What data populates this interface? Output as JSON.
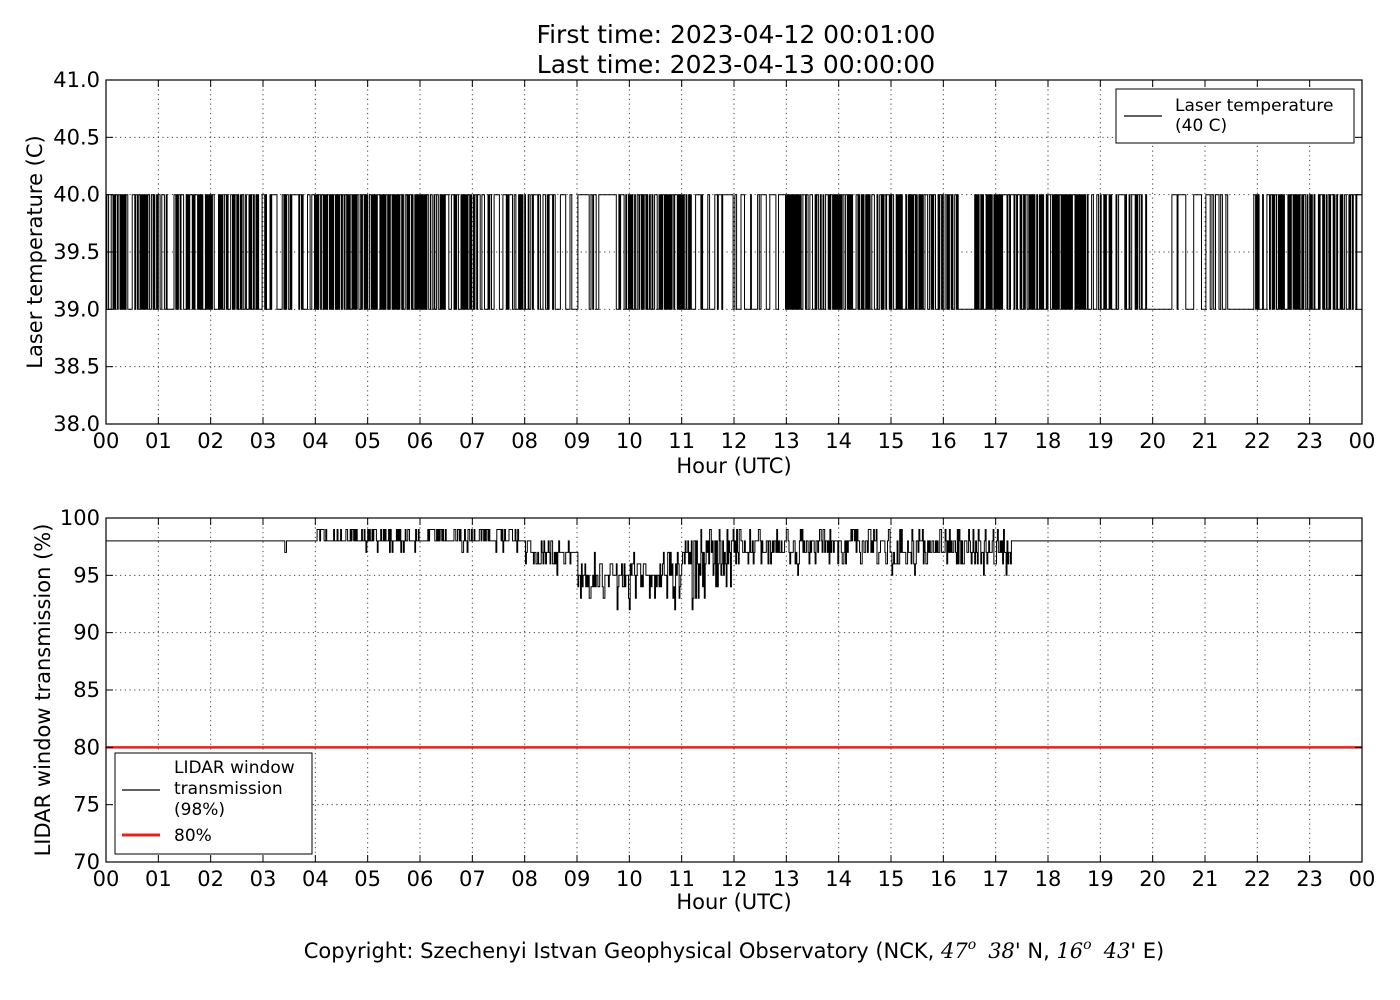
{
  "title_lines": [
    "First time: 2023-04-12 00:01:00",
    "Last time: 2023-04-13 00:00:00"
  ],
  "copyright": {
    "prefix": "Copyright: Szechenyi Istvan Geophysical Observatory (NCK, ",
    "lat_deg": "47",
    "lat_min": "38",
    "lat_suffix": "' N, ",
    "lon_deg": "16",
    "lon_min": "43",
    "lon_suffix": "' E)",
    "deg_symbol": "o"
  },
  "chart_data": [
    {
      "type": "line",
      "xlabel": "Hour (UTC)",
      "ylabel": "Laser temperature (C)",
      "xlim": [
        0,
        24
      ],
      "ylim": [
        38.0,
        41.0
      ],
      "xticks": [
        "00",
        "01",
        "02",
        "03",
        "04",
        "05",
        "06",
        "07",
        "08",
        "09",
        "10",
        "11",
        "12",
        "13",
        "14",
        "15",
        "16",
        "17",
        "18",
        "19",
        "20",
        "21",
        "22",
        "23",
        "00"
      ],
      "yticks": [
        "38.0",
        "38.5",
        "39.0",
        "39.5",
        "40.0",
        "40.5",
        "41.0"
      ],
      "grid": true,
      "legend_position": "top-right",
      "series": [
        {
          "name": "Laser temperature\n(40 C)",
          "color": "#000000",
          "levels": [
            39.0,
            40.0
          ],
          "segments": [
            {
              "start": 0.0,
              "end": 0.3,
              "mode": "toggle",
              "density": 0.55
            },
            {
              "start": 0.3,
              "end": 1.2,
              "mode": "toggle",
              "density": 0.75
            },
            {
              "start": 1.2,
              "end": 1.3,
              "mode": "constant",
              "value": 39.0
            },
            {
              "start": 1.3,
              "end": 3.0,
              "mode": "toggle",
              "density": 0.7
            },
            {
              "start": 3.0,
              "end": 4.0,
              "mode": "toggle",
              "density": 0.35
            },
            {
              "start": 4.0,
              "end": 6.2,
              "mode": "toggle",
              "density": 0.8
            },
            {
              "start": 6.2,
              "end": 7.0,
              "mode": "toggle",
              "density": 0.55
            },
            {
              "start": 7.0,
              "end": 7.9,
              "mode": "toggle",
              "density": 0.4
            },
            {
              "start": 7.9,
              "end": 8.6,
              "mode": "toggle",
              "density": 0.6
            },
            {
              "start": 8.6,
              "end": 9.9,
              "mode": "toggle",
              "density": 0.25
            },
            {
              "start": 9.9,
              "end": 11.2,
              "mode": "toggle",
              "density": 0.8
            },
            {
              "start": 11.2,
              "end": 13.0,
              "mode": "toggle",
              "density": 0.3
            },
            {
              "start": 13.0,
              "end": 16.3,
              "mode": "toggle",
              "density": 0.7
            },
            {
              "start": 16.3,
              "end": 16.6,
              "mode": "constant",
              "value": 39.0
            },
            {
              "start": 16.6,
              "end": 18.8,
              "mode": "toggle",
              "density": 0.75
            },
            {
              "start": 18.8,
              "end": 19.9,
              "mode": "toggle",
              "density": 0.45
            },
            {
              "start": 19.9,
              "end": 20.3,
              "mode": "constant",
              "value": 39.0
            },
            {
              "start": 20.3,
              "end": 21.5,
              "mode": "toggle",
              "density": 0.25
            },
            {
              "start": 21.5,
              "end": 21.9,
              "mode": "constant",
              "value": 39.0
            },
            {
              "start": 21.9,
              "end": 24.0,
              "mode": "toggle",
              "density": 0.65
            }
          ]
        }
      ]
    },
    {
      "type": "line",
      "xlabel": "Hour (UTC)",
      "ylabel": "LIDAR window transmission (%)",
      "xlim": [
        0,
        24
      ],
      "ylim": [
        70,
        100
      ],
      "xticks": [
        "00",
        "01",
        "02",
        "03",
        "04",
        "05",
        "06",
        "07",
        "08",
        "09",
        "10",
        "11",
        "12",
        "13",
        "14",
        "15",
        "16",
        "17",
        "18",
        "19",
        "20",
        "21",
        "22",
        "23",
        "00"
      ],
      "yticks": [
        "70",
        "75",
        "80",
        "85",
        "90",
        "95",
        "100"
      ],
      "grid": true,
      "legend_position": "lower-left",
      "series": [
        {
          "name": "LIDAR window\ntransmission\n(98%)",
          "color": "#000000",
          "baseline": 98,
          "spikes": [
            [
              3.42,
              97
            ],
            [
              3.43,
              97
            ]
          ],
          "noisy_segments": [
            {
              "start": 4.0,
              "end": 8.0,
              "min": 97,
              "max": 99
            },
            {
              "start": 8.0,
              "end": 9.0,
              "min": 95,
              "max": 98
            },
            {
              "start": 9.0,
              "end": 11.0,
              "min": 92,
              "max": 97
            },
            {
              "start": 11.0,
              "end": 12.0,
              "min": 92,
              "max": 99
            },
            {
              "start": 12.0,
              "end": 17.3,
              "min": 95,
              "max": 99
            }
          ],
          "minimum_points": [
            [
              9.5,
              93
            ],
            [
              10.0,
              92
            ],
            [
              11.2,
              92
            ]
          ]
        },
        {
          "name": "80%",
          "color": "#e8221b",
          "constant": 80
        }
      ]
    }
  ]
}
